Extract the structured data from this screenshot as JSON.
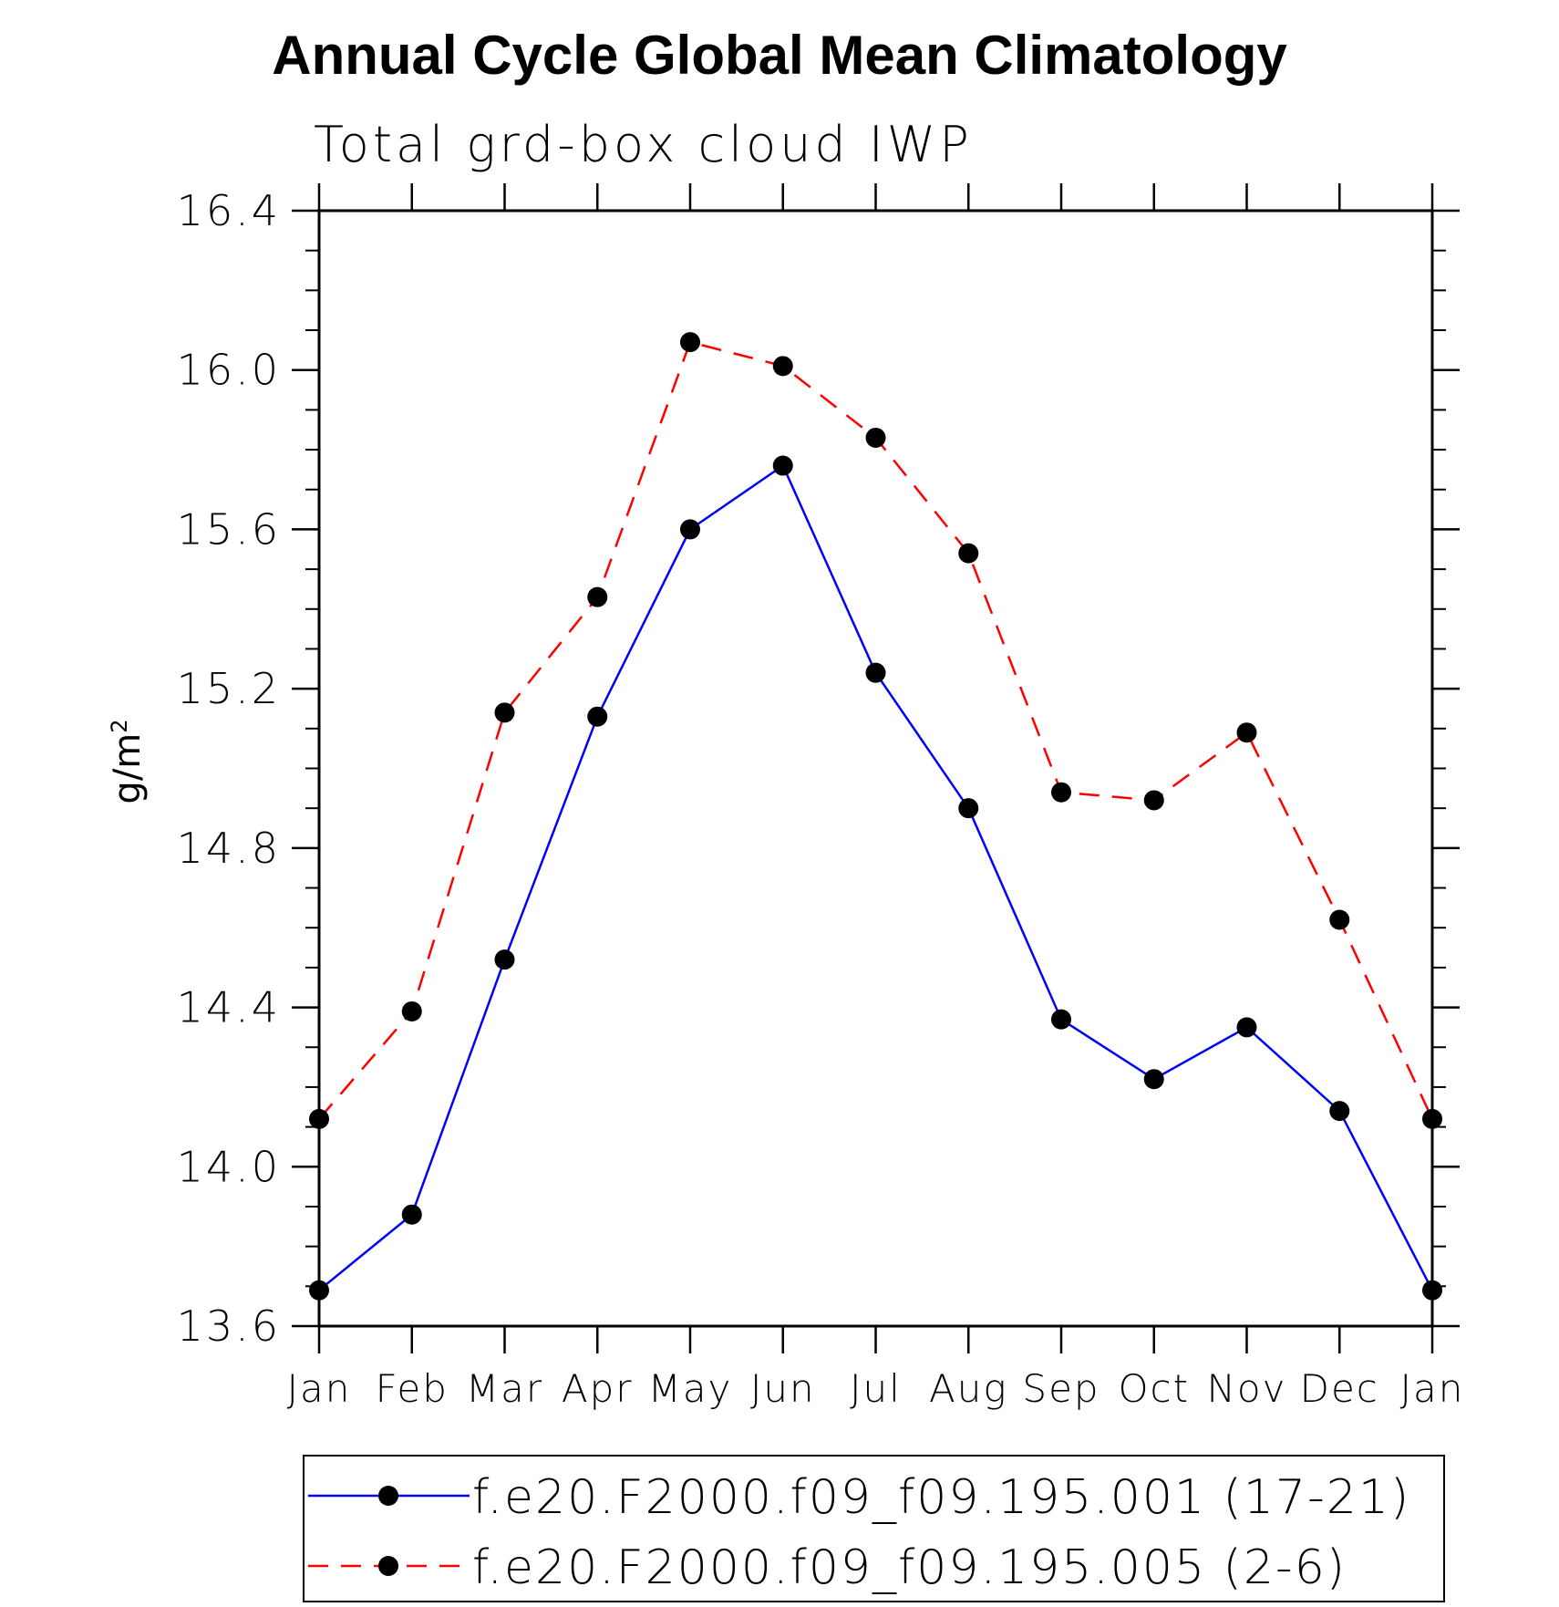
{
  "chart_data": {
    "type": "line",
    "title": "Annual Cycle Global Mean Climatology",
    "subtitle": "Total grd-box cloud IWP",
    "ylabel": "g/m",
    "ylabel_superscript": "2",
    "xlabel": "",
    "ylim": [
      13.6,
      16.4
    ],
    "yticks": [
      "16.4",
      "16.0",
      "15.6",
      "15.2",
      "14.8",
      "14.4",
      "14.0",
      "13.6"
    ],
    "ytick_values": [
      16.4,
      16.0,
      15.6,
      15.2,
      14.8,
      14.4,
      14.0,
      13.6
    ],
    "categories": [
      "Jan",
      "Feb",
      "Mar",
      "Apr",
      "May",
      "Jun",
      "Jul",
      "Aug",
      "Sep",
      "Oct",
      "Nov",
      "Dec",
      "Jan"
    ],
    "series": [
      {
        "name": "f.e20.F2000.f09_f09.195.001 (17-21)",
        "color": "#0000ff",
        "style": "solid",
        "values": [
          13.69,
          13.88,
          14.52,
          15.13,
          15.6,
          15.76,
          15.24,
          14.9,
          14.37,
          14.22,
          14.35,
          14.14,
          13.69
        ]
      },
      {
        "name": "f.e20.F2000.f09_f09.195.005 (2-6)",
        "color": "#ff0000",
        "style": "dashed",
        "values": [
          14.12,
          14.39,
          15.14,
          15.43,
          16.07,
          16.01,
          15.83,
          15.54,
          14.94,
          14.92,
          15.09,
          14.62,
          14.12
        ]
      }
    ],
    "legend_position": "bottom"
  }
}
